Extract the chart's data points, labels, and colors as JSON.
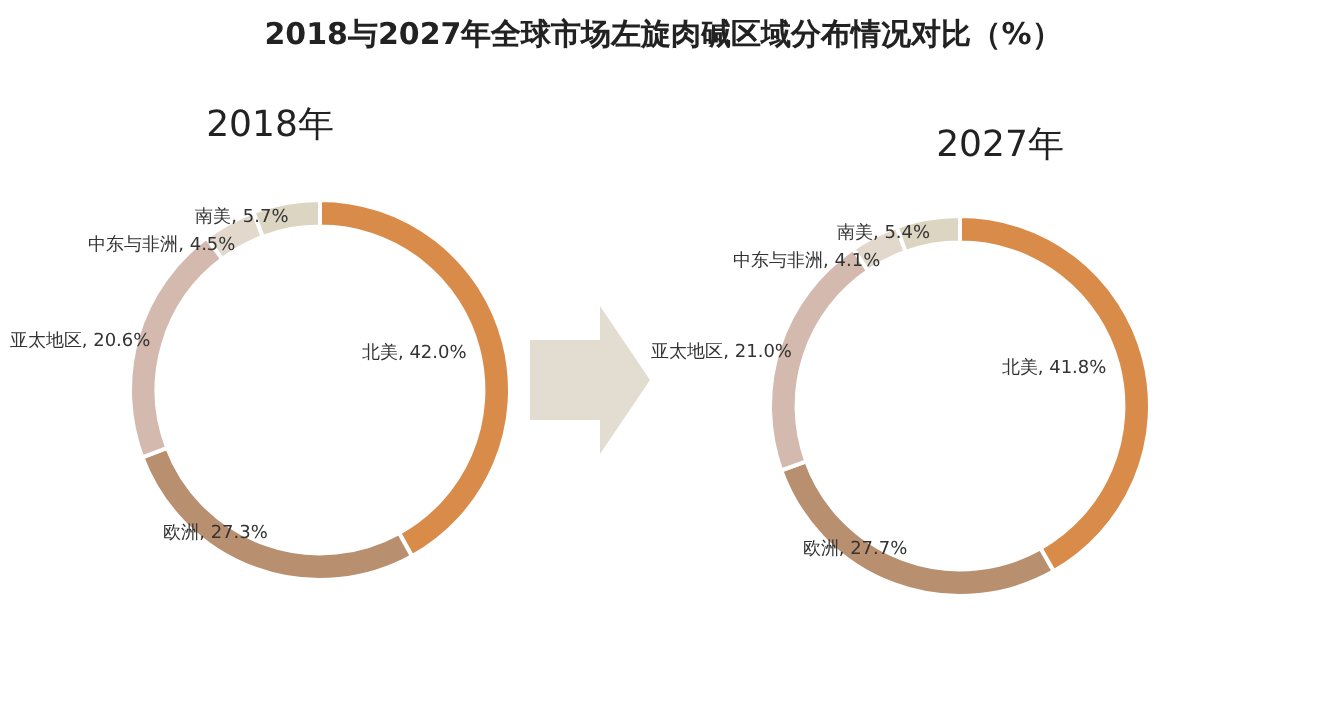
{
  "chart_data": [
    {
      "type": "donut",
      "title": "2018与2027年全球市场左旋肉碱区域分布情况对比（%）",
      "subtitle": "2018年",
      "categories": [
        "北美",
        "欧洲",
        "亚太地区",
        "中东与非洲",
        "南美"
      ],
      "values": [
        42.0,
        27.3,
        20.6,
        4.5,
        5.7
      ],
      "value_labels": [
        ", 42.0%",
        ", 27.3%",
        ", 20.6%",
        ", 4.5%",
        ", 5.7%"
      ],
      "colors": [
        "#d98c4a",
        "#b9906f",
        "#d4b9ae",
        "#e2d9cc",
        "#dcd5c2"
      ]
    },
    {
      "type": "donut",
      "title": "2027年",
      "categories": [
        "北美",
        "欧洲",
        "亚太地区",
        "中东与非洲",
        "南美"
      ],
      "values": [
        41.8,
        27.7,
        21.0,
        4.1,
        5.4
      ],
      "value_labels": [
        ", 41.8%",
        ", 27.7%",
        ", 21.0%",
        ", 4.1%",
        ", 5.4%"
      ],
      "colors": [
        "#d98c4a",
        "#b9906f",
        "#d4b9ae",
        "#e2d9cc",
        "#dcd5c2"
      ]
    }
  ]
}
